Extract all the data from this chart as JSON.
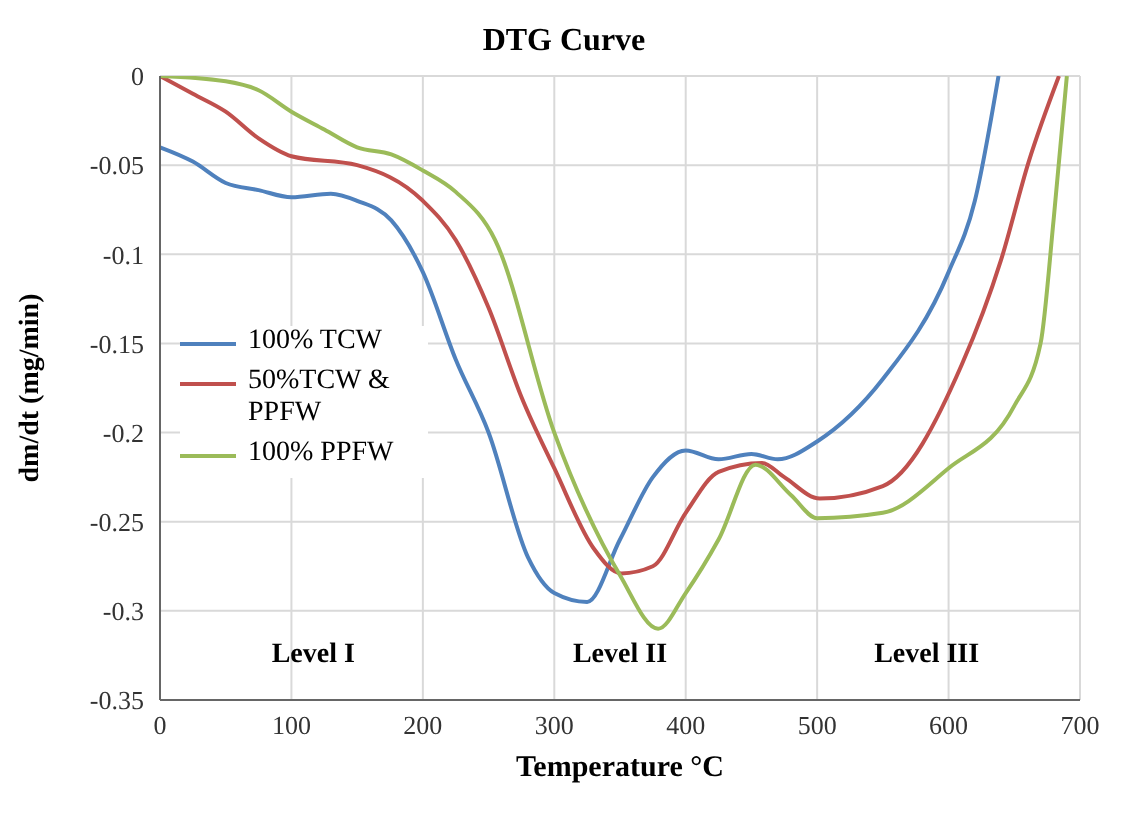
{
  "chart_data": {
    "type": "line",
    "title": "DTG Curve",
    "xlabel": "Temperature °C",
    "ylabel": "dm/dt (mg/min)",
    "xlim": [
      0,
      700
    ],
    "xticks": [
      0,
      100,
      200,
      300,
      400,
      500,
      600,
      700
    ],
    "ylim": [
      -0.35,
      0
    ],
    "yticks": [
      0,
      -0.05,
      -0.1,
      -0.15,
      -0.2,
      -0.25,
      -0.3,
      -0.35
    ],
    "grid": true,
    "legend": "left",
    "marker": "none",
    "line_style": "solid",
    "annotations": [
      "Level I",
      "Level II",
      "Level III"
    ],
    "series": [
      {
        "name": "100% TCW",
        "color": "#4f81bd",
        "x": [
          0,
          25,
          50,
          75,
          100,
          130,
          150,
          176,
          200,
          225,
          250,
          280,
          300,
          325,
          350,
          375,
          400,
          425,
          450,
          470,
          500,
          550,
          600,
          620,
          638
        ],
        "values": [
          -0.04,
          -0.048,
          -0.06,
          -0.064,
          -0.068,
          -0.066,
          -0.07,
          -0.081,
          -0.11,
          -0.159,
          -0.2,
          -0.27,
          -0.29,
          -0.295,
          -0.26,
          -0.225,
          -0.21,
          -0.215,
          -0.212,
          -0.215,
          -0.205,
          -0.17,
          -0.11,
          -0.07,
          0
        ]
      },
      {
        "name": "50%TCW & PPFW",
        "color": "#c0504d",
        "x": [
          0,
          25,
          50,
          75,
          100,
          150,
          200,
          225,
          250,
          275,
          300,
          330,
          351,
          375,
          400,
          425,
          458,
          475,
          502,
          550,
          610,
          640,
          661,
          684
        ],
        "values": [
          0,
          -0.01,
          -0.02,
          -0.035,
          -0.045,
          -0.05,
          -0.07,
          -0.092,
          -0.13,
          -0.18,
          -0.22,
          -0.265,
          -0.279,
          -0.275,
          -0.245,
          -0.222,
          -0.217,
          -0.225,
          -0.237,
          -0.23,
          -0.162,
          -0.103,
          -0.048,
          0
        ]
      },
      {
        "name": "100% PPFW",
        "color": "#9bbb59",
        "x": [
          0,
          50,
          75,
          100,
          125,
          150,
          176,
          200,
          225,
          255,
          300,
          350,
          379,
          400,
          425,
          453,
          480,
          500,
          550,
          600,
          650,
          670,
          680,
          690
        ],
        "values": [
          0,
          -0.003,
          -0.008,
          -0.02,
          -0.03,
          -0.04,
          -0.044,
          -0.053,
          -0.065,
          -0.092,
          -0.2,
          -0.28,
          -0.31,
          -0.29,
          -0.26,
          -0.218,
          -0.235,
          -0.248,
          -0.245,
          -0.22,
          -0.185,
          -0.15,
          -0.08,
          0
        ]
      }
    ]
  }
}
